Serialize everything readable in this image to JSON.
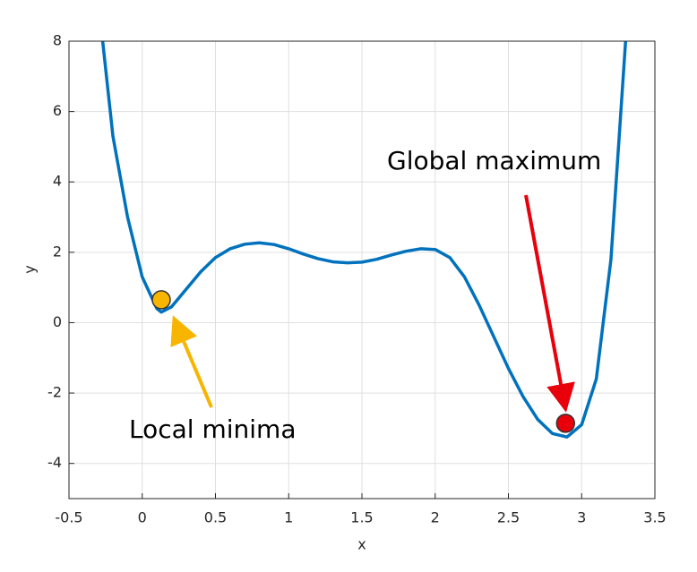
{
  "chart_data": {
    "type": "line",
    "x_label": "x",
    "y_label": "y",
    "x": [
      -0.27,
      -0.2,
      -0.1,
      0,
      0.1,
      0.13,
      0.2,
      0.3,
      0.4,
      0.5,
      0.6,
      0.7,
      0.8,
      0.9,
      1.0,
      1.1,
      1.2,
      1.3,
      1.4,
      1.5,
      1.6,
      1.7,
      1.8,
      1.9,
      2.0,
      2.1,
      2.2,
      2.3,
      2.4,
      2.5,
      2.6,
      2.7,
      2.8,
      2.9,
      3.0,
      3.1,
      3.2,
      3.3
    ],
    "series": [
      {
        "color": "#0072bd",
        "values": [
          8,
          5.3,
          3.0,
          1.3,
          0.4,
          0.3,
          0.45,
          0.95,
          1.45,
          1.85,
          2.1,
          2.23,
          2.27,
          2.22,
          2.1,
          1.95,
          1.82,
          1.73,
          1.7,
          1.72,
          1.8,
          1.92,
          2.03,
          2.1,
          2.08,
          1.85,
          1.3,
          0.5,
          -0.4,
          -1.3,
          -2.1,
          -2.75,
          -3.15,
          -3.25,
          -2.9,
          -1.6,
          1.8,
          8
        ]
      }
    ],
    "markers": [
      {
        "x": 0.13,
        "y": 0.65,
        "color": "#f7b500"
      },
      {
        "x": 2.89,
        "y": -2.86,
        "color": "#e8000b"
      }
    ],
    "annotations": [
      "Local minima",
      "Global maximum"
    ],
    "xlim": [
      -0.5,
      3.5
    ],
    "xticks": [
      -0.5,
      0,
      0.5,
      1,
      1.5,
      2,
      2.5,
      3,
      3.5
    ],
    "ylim": [
      -5,
      8
    ],
    "yticks": [
      -4,
      -2,
      0,
      2,
      4,
      6,
      8
    ],
    "grid": true
  }
}
